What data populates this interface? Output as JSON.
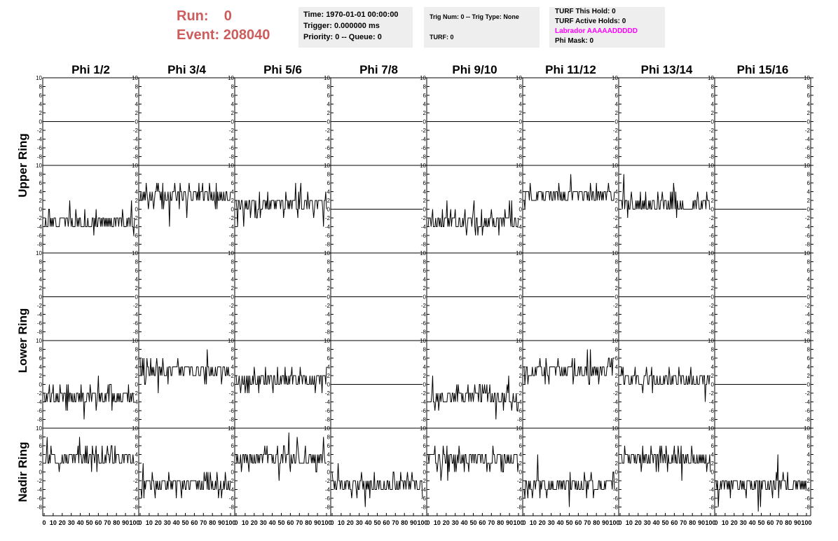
{
  "header": {
    "run_label": "Run:",
    "run_value": "0",
    "event_label": "Event:",
    "event_value": "208040",
    "time": "Time: 1970-01-01 00:00:00",
    "trigger": "Trigger: 0.000000 ms",
    "priority": "Priority: 0 -- Queue: 0",
    "trig_num": "Trig Num: 0 -- Trig Type: None",
    "turf": "TURF: 0",
    "turf_this_hold": "TURF This Hold: 0",
    "turf_active_holds": "TURF Active Holds: 0",
    "labrador": "Labrador AAAAADDDDD",
    "phi_mask": "Phi Mask: 0"
  },
  "colors": {
    "run": "#cd5c5c",
    "labrador": "#ff00ff",
    "trace": "#000000",
    "info_bg": "#eeeeee"
  },
  "chart_data": {
    "type": "line",
    "columns": [
      "Phi 1/2",
      "Phi 3/4",
      "Phi 5/6",
      "Phi 7/8",
      "Phi 9/10",
      "Phi 11/12",
      "Phi 13/14",
      "Phi 15/16"
    ],
    "ring_labels": [
      "Upper Ring",
      "Lower Ring",
      "Nadir Ring"
    ],
    "rows": 5,
    "xlim": [
      0,
      100
    ],
    "ylim": [
      -10,
      10
    ],
    "x_ticks": [
      "0",
      "10",
      "20",
      "30",
      "40",
      "50",
      "60",
      "70",
      "80",
      "90",
      "100"
    ],
    "y_ticks": [
      "-8",
      "-6",
      "-4",
      "-2",
      "0",
      "2",
      "4",
      "6",
      "8",
      "10"
    ],
    "traces": [
      [
        0,
        0,
        0,
        0,
        0,
        0,
        0,
        0
      ],
      [
        -2,
        4,
        2,
        0,
        -2,
        4,
        2,
        0
      ],
      [
        0,
        0,
        0,
        0,
        0,
        0,
        0,
        0
      ],
      [
        -2,
        4,
        2,
        0,
        -2,
        4,
        2,
        0
      ],
      [
        4,
        -2,
        4,
        -2,
        4,
        -2,
        4,
        -2
      ]
    ]
  }
}
